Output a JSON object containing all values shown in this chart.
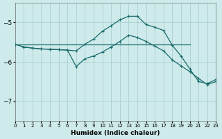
{
  "xlabel": "Humidex (Indice chaleur)",
  "bg_color": "#ceeaea",
  "grid_color": "#aacfcf",
  "line_color": "#1a6b6b",
  "xmin": 0,
  "xmax": 23,
  "ymin": -7.5,
  "ymax": -4.5,
  "yticks": [
    -7,
    -6,
    -5
  ],
  "xticks": [
    0,
    1,
    2,
    3,
    4,
    5,
    6,
    7,
    8,
    9,
    10,
    11,
    12,
    13,
    14,
    15,
    16,
    17,
    18,
    19,
    20,
    21,
    22,
    23
  ],
  "series1_x": [
    0,
    1,
    2,
    3,
    4,
    5,
    6,
    7,
    8,
    9,
    10,
    11,
    12,
    13,
    14,
    15,
    16,
    17,
    18,
    19,
    20,
    21,
    22,
    23
  ],
  "series1_y": [
    -5.55,
    -5.62,
    -5.65,
    -5.67,
    -5.68,
    -5.69,
    -5.7,
    -5.72,
    -5.55,
    -5.42,
    -5.22,
    -5.08,
    -4.93,
    -4.84,
    -4.84,
    -5.05,
    -5.12,
    -5.2,
    -5.58,
    -5.85,
    -6.18,
    -6.5,
    -6.55,
    -6.45
  ],
  "series2_x": [
    0,
    1,
    2,
    3,
    4,
    5,
    6,
    7,
    8,
    9,
    10,
    11,
    12,
    13,
    14,
    15,
    16,
    17,
    18,
    19,
    20,
    21,
    22,
    23
  ],
  "series2_y": [
    -5.55,
    -5.62,
    -5.65,
    -5.67,
    -5.68,
    -5.69,
    -5.7,
    -6.12,
    -5.92,
    -5.85,
    -5.75,
    -5.62,
    -5.48,
    -5.32,
    -5.38,
    -5.48,
    -5.6,
    -5.72,
    -5.95,
    -6.1,
    -6.25,
    -6.42,
    -6.58,
    -6.5
  ],
  "series3_x": [
    0,
    20
  ],
  "series3_y": [
    -5.55,
    -5.55
  ]
}
